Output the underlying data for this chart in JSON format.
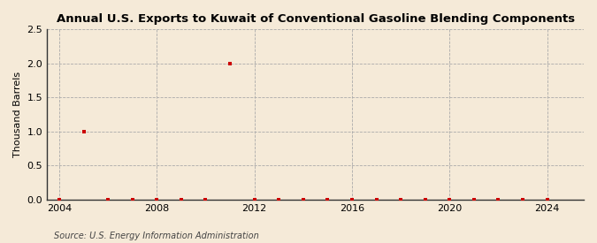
{
  "title": "Annual U.S. Exports to Kuwait of Conventional Gasoline Blending Components",
  "ylabel": "Thousand Barrels",
  "source_text": "Source: U.S. Energy Information Administration",
  "background_color": "#f5ead8",
  "plot_bg_color": "#f5ead8",
  "grid_color": "#aaaaaa",
  "marker_color": "#cc0000",
  "spine_color": "#333333",
  "xlim": [
    2003.5,
    2025.5
  ],
  "ylim": [
    0.0,
    2.5
  ],
  "yticks": [
    0.0,
    0.5,
    1.0,
    1.5,
    2.0,
    2.5
  ],
  "xticks": [
    2004,
    2008,
    2012,
    2016,
    2020,
    2024
  ],
  "years": [
    2004,
    2005,
    2006,
    2007,
    2008,
    2009,
    2010,
    2011,
    2012,
    2013,
    2014,
    2015,
    2016,
    2017,
    2018,
    2019,
    2020,
    2021,
    2022,
    2023,
    2024
  ],
  "values": [
    0.0,
    1.0,
    0.0,
    0.0,
    0.0,
    0.0,
    0.0,
    2.0,
    0.0,
    0.0,
    0.0,
    0.0,
    0.0,
    0.0,
    0.0,
    0.0,
    0.0,
    0.0,
    0.0,
    0.0,
    0.0
  ]
}
